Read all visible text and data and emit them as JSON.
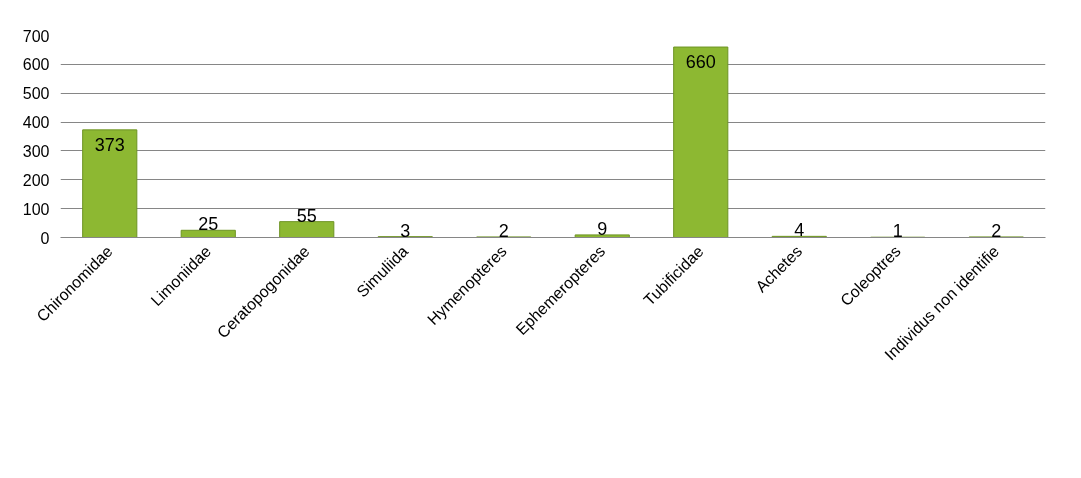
{
  "chart_data": {
    "type": "bar",
    "categories": [
      "Chironomidae",
      "Limoniidae",
      "Ceratopogonidae",
      "Simuliida",
      "Hymenopteres",
      "Ephemeropteres",
      "Tubificidae",
      "Achetes",
      "Coleoptres",
      "Individus non identifie"
    ],
    "values": [
      373,
      25,
      55,
      3,
      2,
      9,
      660,
      4,
      1,
      2
    ],
    "color": "#8db832",
    "ylim": [
      0,
      700
    ],
    "yticks": [
      0,
      100,
      200,
      300,
      400,
      500,
      600,
      700
    ],
    "grid": "y",
    "data_labels": true
  }
}
